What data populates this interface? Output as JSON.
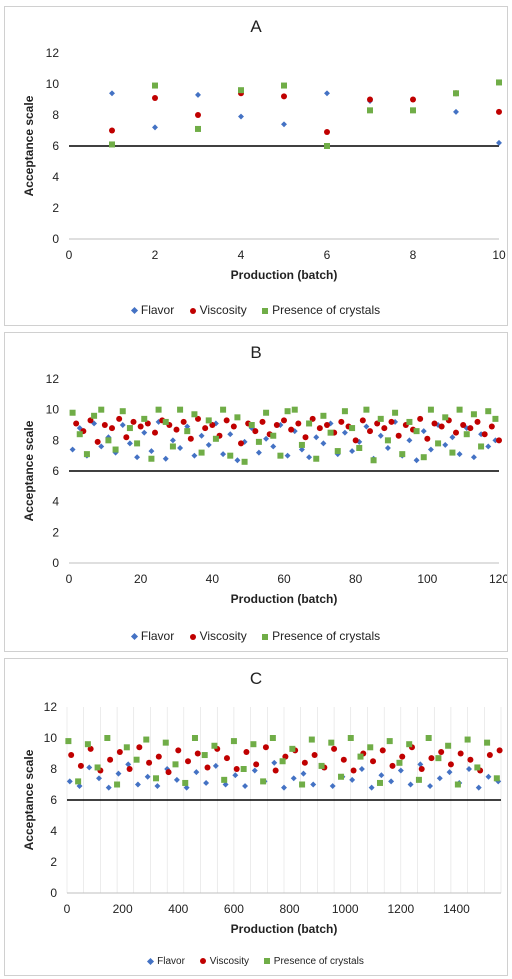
{
  "colors": {
    "flavor": "#4472c4",
    "viscosity": "#c00000",
    "crystals": "#70ad47",
    "threshold": "#000000",
    "grid": "#d9d9d9"
  },
  "chart_data": [
    {
      "type": "scatter",
      "title": "A",
      "xlabel": "Production (batch)",
      "ylabel": "Acceptance scale",
      "xlim": [
        0,
        10
      ],
      "ylim": [
        0,
        12
      ],
      "xticks": [
        "0",
        "2",
        "4",
        "6",
        "8",
        "10"
      ],
      "yticks": [
        "0",
        "2",
        "4",
        "6",
        "8",
        "10",
        "12"
      ],
      "threshold": 6,
      "grid": false,
      "legend_position": "bottom",
      "series": [
        {
          "name": "Flavor",
          "marker": "diamond",
          "x": [
            1,
            2,
            3,
            4,
            5,
            6,
            7,
            8,
            9,
            10
          ],
          "y": [
            9.4,
            7.2,
            9.3,
            7.9,
            7.4,
            9.4,
            8.9,
            8.3,
            8.2,
            6.2
          ]
        },
        {
          "name": "Viscosity",
          "marker": "circle",
          "x": [
            1,
            2,
            3,
            4,
            5,
            6,
            7,
            8,
            9,
            10
          ],
          "y": [
            7.0,
            9.1,
            8.0,
            9.4,
            9.2,
            6.9,
            9.0,
            9.0,
            9.4,
            8.2
          ]
        },
        {
          "name": "Presence of crystals",
          "marker": "square",
          "x": [
            1,
            2,
            3,
            4,
            5,
            6,
            7,
            8,
            9,
            10
          ],
          "y": [
            6.1,
            9.9,
            7.1,
            9.6,
            9.9,
            6.0,
            8.3,
            8.3,
            9.4,
            10.1
          ]
        }
      ]
    },
    {
      "type": "scatter",
      "title": "B",
      "xlabel": "Production (batch)",
      "ylabel": "Acceptance scale",
      "xlim": [
        0,
        120
      ],
      "ylim": [
        0,
        12
      ],
      "xticks": [
        "0",
        "20",
        "40",
        "60",
        "80",
        "100",
        "120"
      ],
      "yticks": [
        "0",
        "2",
        "4",
        "6",
        "8",
        "10",
        "12"
      ],
      "threshold": 6,
      "grid": false,
      "legend_position": "bottom",
      "series": [
        {
          "name": "Flavor",
          "marker": "diamond",
          "x": [
            1,
            3,
            5,
            7,
            9,
            11,
            13,
            15,
            17,
            19,
            21,
            23,
            25,
            27,
            29,
            31,
            33,
            35,
            37,
            39,
            41,
            43,
            45,
            47,
            49,
            51,
            53,
            55,
            57,
            59,
            61,
            63,
            65,
            67,
            69,
            71,
            73,
            75,
            77,
            79,
            81,
            83,
            85,
            87,
            89,
            91,
            93,
            95,
            97,
            99,
            101,
            103,
            105,
            107,
            109,
            111,
            113,
            115,
            117,
            119
          ],
          "y": [
            7.4,
            8.8,
            7.0,
            9.1,
            7.6,
            8.2,
            7.2,
            9.0,
            7.8,
            6.9,
            8.5,
            7.3,
            9.2,
            6.8,
            8.0,
            7.5,
            8.9,
            7.0,
            8.3,
            7.7,
            9.1,
            7.1,
            8.4,
            6.7,
            7.9,
            8.8,
            7.2,
            8.1,
            7.6,
            9.0,
            7.0,
            8.6,
            7.4,
            6.9,
            8.2,
            7.8,
            9.1,
            7.1,
            8.5,
            7.3,
            7.9,
            8.9,
            6.8,
            8.3,
            7.5,
            9.2,
            7.0,
            8.0,
            6.7,
            8.6,
            7.4,
            9.0,
            7.7,
            8.2,
            7.1,
            8.8,
            6.9,
            8.4,
            7.6,
            8.0
          ]
        },
        {
          "name": "Viscosity",
          "marker": "circle",
          "x": [
            2,
            4,
            6,
            8,
            10,
            12,
            14,
            16,
            18,
            20,
            22,
            24,
            26,
            28,
            30,
            32,
            34,
            36,
            38,
            40,
            42,
            44,
            46,
            48,
            50,
            52,
            54,
            56,
            58,
            60,
            62,
            64,
            66,
            68,
            70,
            72,
            74,
            76,
            78,
            80,
            82,
            84,
            86,
            88,
            90,
            92,
            94,
            96,
            98,
            100,
            102,
            104,
            106,
            108,
            110,
            112,
            114,
            116,
            118,
            120
          ],
          "y": [
            9.1,
            8.6,
            9.3,
            7.9,
            9.0,
            8.8,
            9.4,
            8.2,
            9.2,
            8.9,
            9.1,
            8.5,
            9.3,
            9.0,
            8.7,
            9.2,
            8.1,
            9.4,
            8.8,
            9.0,
            8.3,
            9.3,
            8.9,
            7.8,
            9.1,
            8.6,
            9.2,
            8.4,
            9.0,
            9.3,
            8.7,
            9.1,
            8.2,
            9.4,
            8.8,
            9.0,
            8.5,
            9.2,
            8.9,
            8.0,
            9.3,
            8.6,
            9.1,
            8.8,
            9.2,
            8.3,
            9.0,
            8.7,
            9.4,
            8.1,
            9.1,
            8.9,
            9.3,
            8.5,
            9.0,
            8.8,
            9.2,
            8.4,
            8.9,
            8.0
          ]
        },
        {
          "name": "Presence of crystals",
          "marker": "square",
          "x": [
            1,
            3,
            5,
            7,
            9,
            11,
            13,
            15,
            17,
            19,
            21,
            23,
            25,
            27,
            29,
            31,
            33,
            35,
            37,
            39,
            41,
            43,
            45,
            47,
            49,
            51,
            53,
            55,
            57,
            59,
            61,
            63,
            65,
            67,
            69,
            71,
            73,
            75,
            77,
            79,
            81,
            83,
            85,
            87,
            89,
            91,
            93,
            95,
            97,
            99,
            101,
            103,
            105,
            107,
            109,
            111,
            113,
            115,
            117,
            119
          ],
          "y": [
            9.8,
            8.4,
            7.1,
            9.6,
            10.0,
            8.0,
            7.4,
            9.9,
            8.8,
            7.8,
            9.4,
            6.8,
            10.0,
            9.2,
            7.6,
            10.0,
            8.6,
            9.7,
            7.2,
            9.3,
            8.1,
            10.0,
            7.0,
            9.5,
            6.6,
            9.0,
            7.9,
            9.8,
            8.3,
            7.0,
            9.9,
            10.0,
            7.7,
            9.1,
            6.8,
            9.6,
            8.5,
            7.3,
            9.9,
            8.8,
            7.5,
            10.0,
            6.7,
            9.4,
            8.0,
            9.8,
            7.1,
            9.2,
            8.6,
            6.9,
            10.0,
            7.8,
            9.5,
            7.2,
            10.0,
            8.4,
            9.7,
            7.6,
            9.9,
            9.4
          ]
        }
      ]
    },
    {
      "type": "scatter",
      "title": "C",
      "xlabel": "Production (batch)",
      "ylabel": "Acceptance scale",
      "xlim": [
        0,
        1560
      ],
      "ylim": [
        0,
        12
      ],
      "xticks": [
        "0",
        "200",
        "400",
        "600",
        "800",
        "1000",
        "1200",
        "1400"
      ],
      "yticks": [
        "0",
        "2",
        "4",
        "6",
        "8",
        "10",
        "12"
      ],
      "threshold": 6,
      "grid": true,
      "legend_position": "bottom",
      "series": [
        {
          "name": "Flavor",
          "marker": "diamond",
          "x": [
            10,
            45,
            80,
            115,
            150,
            185,
            220,
            255,
            290,
            325,
            360,
            395,
            430,
            465,
            500,
            535,
            570,
            605,
            640,
            675,
            710,
            745,
            780,
            815,
            850,
            885,
            920,
            955,
            990,
            1025,
            1060,
            1095,
            1130,
            1165,
            1200,
            1235,
            1270,
            1305,
            1340,
            1375,
            1410,
            1445,
            1480,
            1515,
            1550
          ],
          "y": [
            7.2,
            6.9,
            8.1,
            7.4,
            6.8,
            7.7,
            8.3,
            7.0,
            7.5,
            6.9,
            8.0,
            7.3,
            6.8,
            7.8,
            7.1,
            8.2,
            7.0,
            7.6,
            6.9,
            7.9,
            7.2,
            8.4,
            6.8,
            7.4,
            7.7,
            7.0,
            8.1,
            6.9,
            7.5,
            7.3,
            8.0,
            6.8,
            7.6,
            7.2,
            7.9,
            7.0,
            8.3,
            6.9,
            7.4,
            7.8,
            7.1,
            8.0,
            6.8,
            7.5,
            7.2
          ]
        },
        {
          "name": "Viscosity",
          "marker": "circle",
          "x": [
            15,
            50,
            85,
            120,
            155,
            190,
            225,
            260,
            295,
            330,
            365,
            400,
            435,
            470,
            505,
            540,
            575,
            610,
            645,
            680,
            715,
            750,
            785,
            820,
            855,
            890,
            925,
            960,
            995,
            1030,
            1065,
            1100,
            1135,
            1170,
            1205,
            1240,
            1275,
            1310,
            1345,
            1380,
            1415,
            1450,
            1485,
            1520,
            1555
          ],
          "y": [
            8.9,
            8.2,
            9.3,
            7.9,
            8.6,
            9.1,
            8.0,
            9.4,
            8.4,
            8.8,
            7.8,
            9.2,
            8.5,
            9.0,
            8.1,
            9.3,
            8.7,
            8.0,
            9.1,
            8.3,
            9.4,
            7.9,
            8.8,
            9.2,
            8.4,
            8.9,
            8.1,
            9.3,
            8.6,
            7.9,
            9.0,
            8.5,
            9.2,
            8.2,
            8.8,
            9.4,
            8.0,
            8.7,
            9.1,
            8.3,
            9.0,
            8.6,
            7.9,
            8.9,
            9.2
          ]
        },
        {
          "name": "Presence of crystals",
          "marker": "square",
          "x": [
            5,
            40,
            75,
            110,
            145,
            180,
            215,
            250,
            285,
            320,
            355,
            390,
            425,
            460,
            495,
            530,
            565,
            600,
            635,
            670,
            705,
            740,
            775,
            810,
            845,
            880,
            915,
            950,
            985,
            1020,
            1055,
            1090,
            1125,
            1160,
            1195,
            1230,
            1265,
            1300,
            1335,
            1370,
            1405,
            1440,
            1475,
            1510,
            1545
          ],
          "y": [
            9.8,
            7.2,
            9.6,
            8.1,
            10.0,
            7.0,
            9.4,
            8.6,
            9.9,
            7.4,
            9.7,
            8.3,
            7.1,
            10.0,
            8.9,
            9.5,
            7.3,
            9.8,
            8.0,
            9.6,
            7.2,
            10.0,
            8.5,
            9.3,
            7.0,
            9.9,
            8.2,
            9.7,
            7.5,
            10.0,
            8.8,
            9.4,
            7.1,
            9.8,
            8.4,
            9.6,
            7.3,
            10.0,
            8.7,
            9.5,
            7.0,
            9.9,
            8.1,
            9.7,
            7.4
          ]
        }
      ]
    }
  ]
}
